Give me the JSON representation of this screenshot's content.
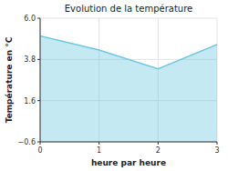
{
  "chart_data": {
    "type": "area",
    "title": "Evolution de la température",
    "xlabel": "heure par heure",
    "ylabel": "Température en °C",
    "x": [
      0,
      1,
      2,
      3
    ],
    "y": [
      5.05,
      4.3,
      3.3,
      4.6
    ],
    "xlim": [
      0,
      3
    ],
    "ylim": [
      -0.6,
      6.0
    ],
    "xticks": [
      0,
      1,
      2,
      3
    ],
    "yticks": [
      {
        "value": -0.6,
        "label": "−0.6"
      },
      {
        "value": 1.6,
        "label": "1.6"
      },
      {
        "value": 3.8,
        "label": "3.8"
      },
      {
        "value": 6.0,
        "label": "6.0"
      }
    ],
    "color": "#6ec8e0",
    "grid": true
  }
}
